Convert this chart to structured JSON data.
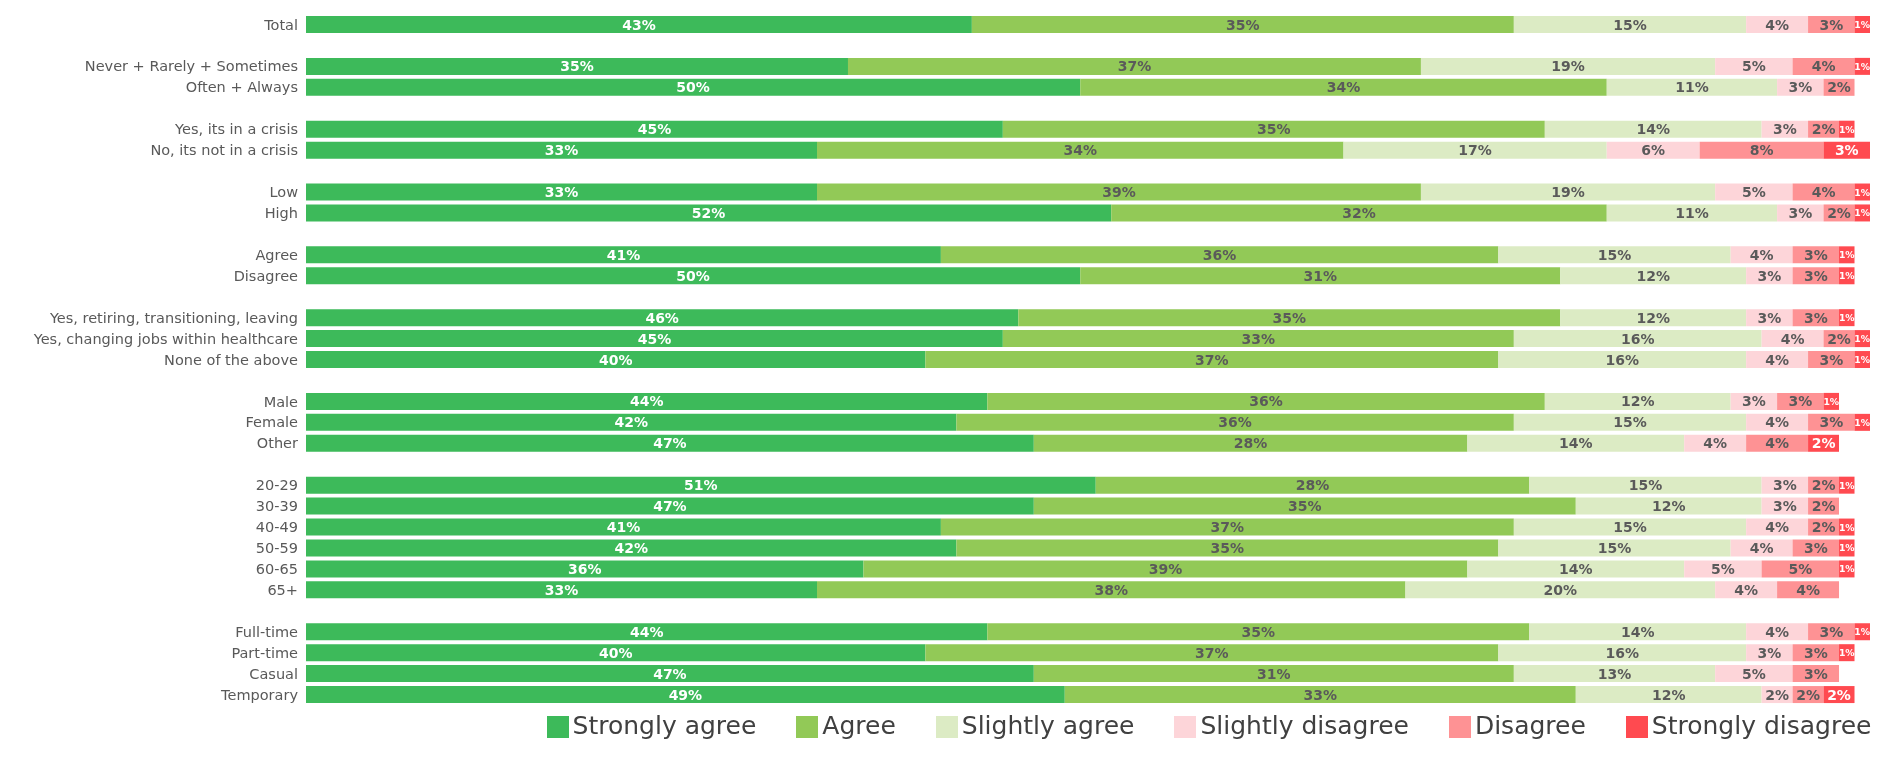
{
  "chart_data": {
    "type": "bar",
    "orientation": "horizontal",
    "stacked": true,
    "legend": "bottom",
    "categories": [
      "Total",
      null,
      "Never + Rarely + Sometimes",
      "Often + Always",
      null,
      "Yes, its in a crisis",
      "No, its not in a crisis",
      null,
      "Low",
      "High",
      null,
      "Agree",
      "Disagree",
      null,
      "Yes, retiring, transitioning, leaving",
      "Yes, changing jobs within healthcare",
      "None of the above",
      null,
      "Male",
      "Female",
      "Other",
      null,
      "20-29",
      "30-39",
      "40-49",
      "50-59",
      "60-65",
      "65+",
      null,
      "Full-time",
      "Part-time",
      "Casual",
      "Temporary"
    ],
    "series": [
      {
        "name": "Strongly agree",
        "color": "#3dba5a",
        "values": [
          43,
          null,
          35,
          50,
          null,
          45,
          33,
          null,
          33,
          52,
          null,
          41,
          50,
          null,
          46,
          45,
          40,
          null,
          44,
          42,
          47,
          null,
          51,
          47,
          41,
          42,
          36,
          33,
          null,
          44,
          40,
          47,
          49
        ],
        "value_labels": [
          "43%",
          null,
          "35%",
          "50%",
          null,
          "45%",
          "33%",
          null,
          "33%",
          "52%",
          null,
          "41%",
          "50%",
          null,
          "46%",
          "45%",
          "40%",
          null,
          "44%",
          "42%",
          "47%",
          null,
          "51%",
          "47%",
          "41%",
          "42%",
          "36%",
          "33%",
          null,
          "44%",
          "40%",
          "47%",
          "49%"
        ]
      },
      {
        "name": "Agree",
        "color": "#92c957",
        "values": [
          35,
          null,
          37,
          34,
          null,
          35,
          34,
          null,
          39,
          32,
          null,
          36,
          31,
          null,
          35,
          33,
          37,
          null,
          36,
          36,
          28,
          null,
          28,
          35,
          37,
          35,
          39,
          38,
          null,
          35,
          37,
          31,
          33
        ],
        "value_labels": [
          "35%",
          null,
          "37%",
          "34%",
          null,
          "35%",
          "34%",
          null,
          "39%",
          "32%",
          null,
          "36%",
          "31%",
          null,
          "35%",
          "33%",
          "37%",
          null,
          "36%",
          "36%",
          "28%",
          null,
          "28%",
          "35%",
          "37%",
          "35%",
          "39%",
          "38%",
          null,
          "35%",
          "37%",
          "31%",
          "33%"
        ]
      },
      {
        "name": "Slightly agree",
        "color": "#dcebc4",
        "values": [
          15,
          null,
          19,
          11,
          null,
          14,
          17,
          null,
          19,
          11,
          null,
          15,
          12,
          null,
          12,
          16,
          16,
          null,
          12,
          15,
          14,
          null,
          15,
          12,
          15,
          15,
          14,
          20,
          null,
          14,
          16,
          13,
          12
        ],
        "value_labels": [
          "15%",
          null,
          "19%",
          "11%",
          null,
          "14%",
          "17%",
          null,
          "19%",
          "11%",
          null,
          "15%",
          "12%",
          null,
          "12%",
          "16%",
          "16%",
          null,
          "12%",
          "15%",
          "14%",
          null,
          "15%",
          "12%",
          "15%",
          "15%",
          "14%",
          "20%",
          null,
          "14%",
          "16%",
          "13%",
          "12%"
        ]
      },
      {
        "name": "Slightly disagree",
        "color": "#fdd5d9",
        "values": [
          4,
          null,
          5,
          3,
          null,
          3,
          6,
          null,
          5,
          3,
          null,
          4,
          3,
          null,
          3,
          4,
          4,
          null,
          3,
          4,
          4,
          null,
          3,
          3,
          4,
          4,
          5,
          4,
          null,
          4,
          3,
          5,
          2
        ],
        "value_labels": [
          "4%",
          null,
          "5%",
          "3%",
          null,
          "3%",
          "6%",
          null,
          "5%",
          "3%",
          null,
          "4%",
          "3%",
          null,
          "3%",
          "4%",
          "4%",
          null,
          "3%",
          "4%",
          "4%",
          null,
          "3%",
          "3%",
          "4%",
          "4%",
          "5%",
          "4%",
          null,
          "4%",
          "3%",
          "5%",
          "2%"
        ]
      },
      {
        "name": "Disagree",
        "color": "#fe9294",
        "values": [
          3,
          null,
          4,
          2,
          null,
          2,
          8,
          null,
          4,
          2,
          null,
          3,
          3,
          null,
          3,
          2,
          3,
          null,
          3,
          3,
          4,
          null,
          2,
          2,
          2,
          3,
          5,
          4,
          null,
          3,
          3,
          3,
          2
        ],
        "value_labels": [
          "3%",
          null,
          "4%",
          "2%",
          null,
          "2%",
          "8%",
          null,
          "4%",
          "2%",
          null,
          "3%",
          "3%",
          null,
          "3%",
          "2%",
          "3%",
          null,
          "3%",
          "3%",
          "4%",
          null,
          "2%",
          "2%",
          "2%",
          "3%",
          "5%",
          "4%",
          null,
          "3%",
          "3%",
          "3%",
          "2%"
        ]
      },
      {
        "name": "Strongly disagree",
        "color": "#ff4a50",
        "values": [
          1,
          null,
          1,
          null,
          null,
          1,
          3,
          null,
          1,
          1,
          null,
          1,
          1,
          null,
          1,
          1,
          1,
          null,
          1,
          1,
          2,
          null,
          1,
          null,
          1,
          1,
          1,
          null,
          null,
          1,
          1,
          null,
          2
        ],
        "value_labels": [
          "1%",
          null,
          "1%",
          null,
          null,
          "1%",
          "3%",
          null,
          "1%",
          "1%",
          null,
          "1%",
          "1%",
          null,
          "1%",
          "1%",
          "1%",
          null,
          "1%",
          "1%",
          "2%",
          null,
          "1%",
          null,
          "1%",
          "1%",
          "1%",
          null,
          null,
          "1%",
          "1%",
          null,
          "2%"
        ]
      }
    ]
  }
}
